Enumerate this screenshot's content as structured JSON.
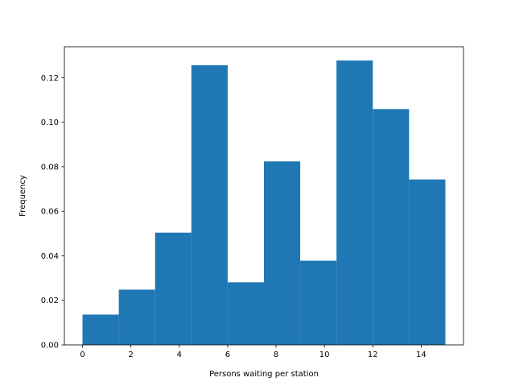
{
  "chart_data": {
    "type": "bar",
    "xlabel": "Persons waiting per station",
    "ylabel": "Frequency",
    "xlim": [
      -0.75,
      15.75
    ],
    "ylim": [
      0,
      0.1339
    ],
    "x_ticks": [
      0,
      2,
      4,
      6,
      8,
      10,
      12,
      14
    ],
    "x_tick_labels": [
      "0",
      "2",
      "4",
      "6",
      "8",
      "10",
      "12",
      "14"
    ],
    "y_ticks": [
      0,
      0.02,
      0.04,
      0.06,
      0.08,
      0.1,
      0.12
    ],
    "y_tick_labels": [
      "0.00",
      "0.02",
      "0.04",
      "0.06",
      "0.08",
      "0.10",
      "0.12"
    ],
    "bin_edges": [
      0,
      1.5,
      3,
      4.5,
      6,
      7.5,
      9,
      10.5,
      12,
      13.5,
      15
    ],
    "values": [
      0.0136,
      0.0248,
      0.0504,
      0.1256,
      0.0281,
      0.0824,
      0.0378,
      0.1277,
      0.1059,
      0.0743
    ],
    "bar_color": "#1f77b4",
    "grid": false
  }
}
